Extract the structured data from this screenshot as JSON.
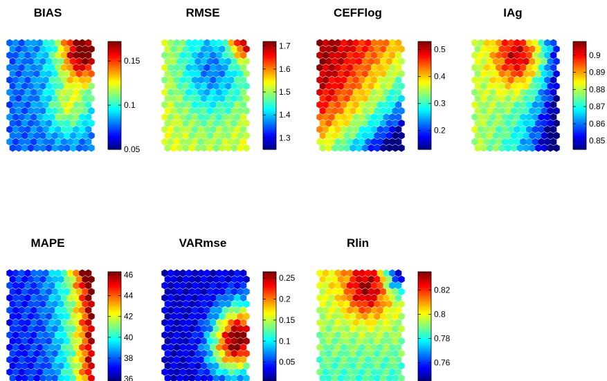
{
  "chart_data": [
    {
      "type": "heatmap",
      "title": "BIAS",
      "colormap": "jet",
      "grid": false,
      "colorbar": "right",
      "clim": [
        0.05,
        0.172
      ],
      "colorbar_ticks": [
        0.05,
        0.1,
        0.15
      ],
      "colorbar_tick_labels": [
        "0.05",
        "0.1",
        "0.15"
      ],
      "pattern": "low values over most of the map; high values concentrated in the top-right corner, medium band along the lower-right"
    },
    {
      "type": "heatmap",
      "title": "RMSE",
      "colormap": "jet",
      "grid": false,
      "colorbar": "right",
      "clim": [
        1.25,
        1.72
      ],
      "colorbar_ticks": [
        1.3,
        1.4,
        1.5,
        1.6,
        1.7
      ],
      "colorbar_tick_labels": [
        "1.3",
        "1.4",
        "1.5",
        "1.6",
        "1.7"
      ],
      "pattern": "low values in the upper-middle; rising toward the edges; maximum at the top-right corner"
    },
    {
      "type": "heatmap",
      "title": "CEFFlog",
      "colormap": "jet",
      "grid": false,
      "colorbar": "right",
      "clim": [
        0.13,
        0.53
      ],
      "colorbar_ticks": [
        0.2,
        0.3,
        0.4,
        0.5
      ],
      "colorbar_tick_labels": [
        "0.2",
        "0.3",
        "0.4",
        "0.5"
      ],
      "pattern": "high values over the upper-left and left; low values along the right edge and bottom"
    },
    {
      "type": "heatmap",
      "title": "IAg",
      "colormap": "jet",
      "grid": false,
      "colorbar": "right",
      "clim": [
        0.845,
        0.908
      ],
      "colorbar_ticks": [
        0.85,
        0.86,
        0.87,
        0.88,
        0.89,
        0.9
      ],
      "colorbar_tick_labels": [
        "0.85",
        "0.86",
        "0.87",
        "0.88",
        "0.89",
        "0.9"
      ],
      "pattern": "maximum in the upper-middle; high values over the left and centre; low values along the right edge and bottom-right"
    },
    {
      "type": "heatmap",
      "title": "MAPE",
      "colormap": "jet",
      "grid": false,
      "colorbar": "right",
      "clim": [
        35.8,
        46.3
      ],
      "colorbar_ticks": [
        36,
        38,
        40,
        42,
        44,
        46
      ],
      "colorbar_tick_labels": [
        "36",
        "38",
        "40",
        "42",
        "44",
        "46"
      ],
      "pattern": "low values over the centre-left; rising toward the right edge; maximum at the top-right corner"
    },
    {
      "type": "heatmap",
      "title": "VARmse",
      "colormap": "jet",
      "grid": false,
      "colorbar": "right",
      "clim": [
        0.005,
        0.265
      ],
      "colorbar_ticks": [
        0.05,
        0.1,
        0.15,
        0.2,
        0.25
      ],
      "colorbar_tick_labels": [
        "0.05",
        "0.1",
        "0.15",
        "0.2",
        "0.25"
      ],
      "pattern": "low values over the left and top; high values concentrated along the middle of the right edge"
    },
    {
      "type": "heatmap",
      "title": "Rlin",
      "colormap": "jet",
      "grid": false,
      "colorbar": "right",
      "clim": [
        0.745,
        0.835
      ],
      "colorbar_ticks": [
        0.76,
        0.78,
        0.8,
        0.82
      ],
      "colorbar_tick_labels": [
        "0.76",
        "0.78",
        "0.8",
        "0.82"
      ],
      "pattern": "maximum in the upper-middle; high over most of the map; low values in the top-right corner"
    }
  ]
}
